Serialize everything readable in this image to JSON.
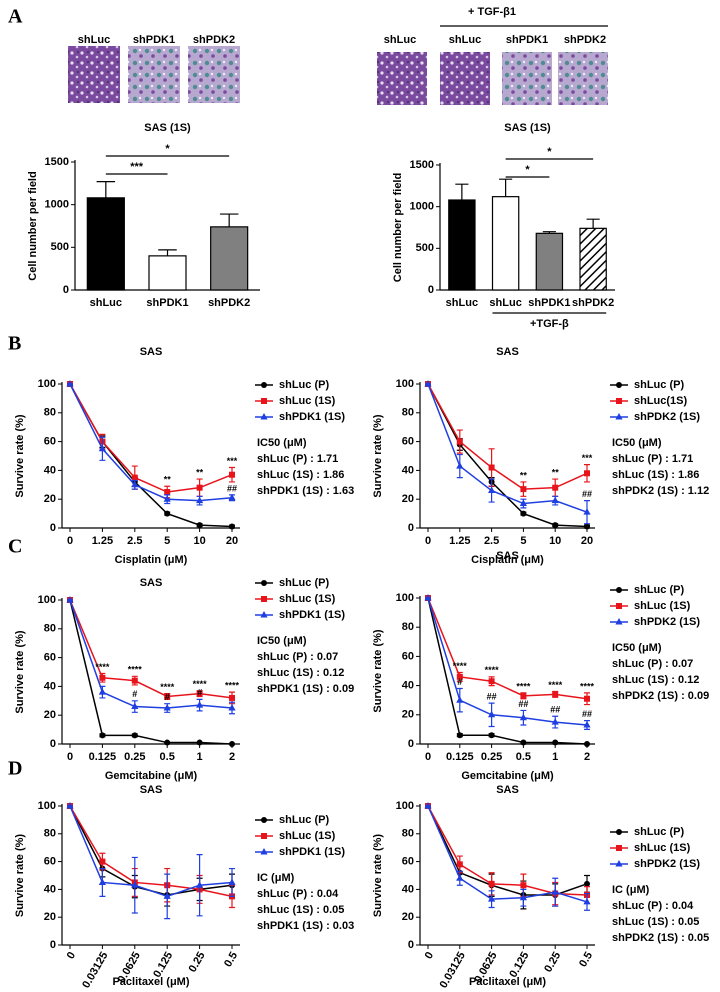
{
  "panels": [
    "A",
    "B",
    "C",
    "D"
  ],
  "images": {
    "left": [
      "shLuc",
      "shPDK1",
      "shPDK2"
    ],
    "right_header": "+ TGF-β1",
    "right": [
      "shLuc",
      "shLuc",
      "shPDK1",
      "shPDK2"
    ]
  },
  "chart_data": [
    {
      "type": "bar",
      "title": "SAS (1S)",
      "ylabel": "Cell number per field",
      "categories": [
        "shLuc",
        "shPDK1",
        "shPDK2"
      ],
      "values": [
        1080,
        400,
        740
      ],
      "errors": [
        190,
        70,
        150
      ],
      "fills": [
        "#000000",
        "#ffffff",
        "#808080"
      ],
      "ylim": [
        0,
        1500
      ],
      "yticks": [
        0,
        500,
        1000,
        1500
      ],
      "brackets": [
        {
          "text": "***",
          "from": 0,
          "to": 1
        },
        {
          "text": "*",
          "from": 0,
          "to": 2
        }
      ]
    },
    {
      "type": "bar",
      "title": "SAS (1S)",
      "ylabel": "Cell number per field",
      "categories": [
        "shLuc",
        "shLuc",
        "shPDK1",
        "shPDK2"
      ],
      "values": [
        1080,
        1120,
        680,
        740
      ],
      "errors": [
        190,
        210,
        20,
        110
      ],
      "fills": [
        "#000000",
        "#ffffff",
        "#808080",
        "hatch"
      ],
      "ylim": [
        0,
        1500
      ],
      "yticks": [
        0,
        500,
        1000,
        1500
      ],
      "brackets": [
        {
          "text": "*",
          "from": 1,
          "to": 2
        },
        {
          "text": "*",
          "from": 1,
          "to": 3
        }
      ],
      "group": {
        "label": "+TGF-β",
        "from": 1,
        "to": 3
      }
    },
    {
      "type": "line",
      "title": "SAS",
      "xlabel": "Cisplatin (μM)",
      "ylabel": "Survive rate (%)",
      "categories": [
        "0",
        "1.25",
        "2.5",
        "5",
        "10",
        "20"
      ],
      "ylim": [
        0,
        100
      ],
      "yticks": [
        0,
        20,
        40,
        60,
        80,
        100
      ],
      "series": [
        {
          "name": "shLuc (P)",
          "color": "#000000",
          "marker": "circle",
          "values": [
            100,
            60,
            32,
            10,
            2,
            1
          ],
          "errors": [
            0,
            4,
            3,
            1,
            1,
            1
          ]
        },
        {
          "name": "shLuc (1S)",
          "color": "#e8141c",
          "marker": "square",
          "values": [
            100,
            60,
            35,
            25,
            28,
            37
          ],
          "errors": [
            0,
            5,
            8,
            4,
            6,
            5
          ],
          "sig": [
            null,
            null,
            null,
            "**",
            "**",
            "***"
          ]
        },
        {
          "name": "shPDK1 (1S)",
          "color": "#1f3fe0",
          "marker": "triangle",
          "values": [
            100,
            55,
            30,
            20,
            19,
            21
          ],
          "errors": [
            0,
            8,
            3,
            3,
            3,
            2
          ],
          "sig": [
            null,
            null,
            null,
            null,
            null,
            "##"
          ]
        }
      ],
      "ic_title": "IC50 (μM)",
      "ic_lines": [
        "shLuc (P) : 1.71",
        "shLuc (1S) : 1.86",
        "shPDK1 (1S) : 1.63"
      ]
    },
    {
      "type": "line",
      "title": "SAS",
      "xlabel": "Cisplatin (μM)",
      "ylabel": "Survive rate (%)",
      "categories": [
        "0",
        "1.25",
        "2.5",
        "5",
        "10",
        "20"
      ],
      "ylim": [
        0,
        100
      ],
      "yticks": [
        0,
        20,
        40,
        60,
        80,
        100
      ],
      "series": [
        {
          "name": "shLuc (P)",
          "color": "#000000",
          "marker": "circle",
          "values": [
            100,
            58,
            32,
            10,
            2,
            1
          ],
          "errors": [
            0,
            4,
            3,
            1,
            1,
            1
          ]
        },
        {
          "name": "shLuc(1S)",
          "color": "#e8141c",
          "marker": "square",
          "values": [
            100,
            60,
            42,
            27,
            28,
            38
          ],
          "errors": [
            0,
            8,
            13,
            5,
            6,
            6
          ],
          "sig": [
            null,
            null,
            null,
            "**",
            "**",
            "***"
          ]
        },
        {
          "name": "shPDK2 (1S)",
          "color": "#1f3fe0",
          "marker": "triangle",
          "values": [
            100,
            43,
            26,
            17,
            19,
            11
          ],
          "errors": [
            0,
            8,
            8,
            3,
            3,
            8
          ],
          "sig": [
            null,
            null,
            null,
            null,
            null,
            "##"
          ]
        }
      ],
      "ic_title": "IC50 (μM)",
      "ic_lines": [
        "shLuc (P) : 1.71",
        "shLuc (1S) : 1.86",
        "shPDK2 (1S) : 1.12"
      ]
    },
    {
      "type": "line",
      "title": "SAS",
      "xlabel": "Gemcitabine (μM)",
      "ylabel": "Survive rate (%)",
      "categories": [
        "0",
        "0.125",
        "0.25",
        "0.5",
        "1",
        "2"
      ],
      "ylim": [
        0,
        100
      ],
      "yticks": [
        0,
        20,
        40,
        60,
        80,
        100
      ],
      "series": [
        {
          "name": "shLuc (P)",
          "color": "#000000",
          "marker": "circle",
          "values": [
            100,
            6,
            6,
            1,
            1,
            0
          ],
          "errors": [
            0,
            1,
            1,
            0,
            0,
            0
          ]
        },
        {
          "name": "shLuc (1S)",
          "color": "#e8141c",
          "marker": "square",
          "values": [
            100,
            46,
            44,
            33,
            35,
            32
          ],
          "errors": [
            0,
            3,
            3,
            2,
            2,
            4
          ],
          "sig": [
            null,
            "****",
            "****",
            "****",
            "****",
            "****"
          ]
        },
        {
          "name": "shPDK1 (1S)",
          "color": "#1f3fe0",
          "marker": "triangle",
          "values": [
            100,
            36,
            26,
            25,
            27,
            25
          ],
          "errors": [
            0,
            4,
            4,
            3,
            4,
            4
          ],
          "sig": [
            null,
            null,
            "#",
            "#",
            "#",
            null
          ]
        }
      ],
      "ic_title": "IC50 (μM)",
      "ic_lines": [
        "shLuc (P) : 0.07",
        "shLuc (1S) : 0.12",
        "shPDK1 (1S) : 0.09"
      ]
    },
    {
      "type": "line",
      "title": "SAS",
      "xlabel": "Gemcitabine (μM)",
      "ylabel": "Survive rate (%)",
      "categories": [
        "0",
        "0.125",
        "0.25",
        "0.5",
        "1",
        "2"
      ],
      "ylim": [
        0,
        100
      ],
      "yticks": [
        0,
        20,
        40,
        60,
        80,
        100
      ],
      "series": [
        {
          "name": "shLuc (P)",
          "color": "#000000",
          "marker": "circle",
          "values": [
            100,
            6,
            6,
            1,
            1,
            0
          ],
          "errors": [
            0,
            1,
            1,
            0,
            0,
            0
          ]
        },
        {
          "name": "shLuc (1S)",
          "color": "#e8141c",
          "marker": "square",
          "values": [
            100,
            46,
            43,
            33,
            34,
            31
          ],
          "errors": [
            0,
            3,
            3,
            2,
            2,
            4
          ],
          "sig": [
            null,
            "****",
            "****",
            "****",
            "****",
            "****"
          ]
        },
        {
          "name": "shPDK2 (1S)",
          "color": "#1f3fe0",
          "marker": "triangle",
          "values": [
            100,
            30,
            20,
            18,
            15,
            13
          ],
          "errors": [
            0,
            8,
            8,
            5,
            4,
            3
          ],
          "sig": [
            null,
            "#",
            "##",
            "##",
            "##",
            "##"
          ]
        }
      ],
      "ic_title": "IC50 (μM)",
      "ic_lines": [
        "shLuc (P) : 0.07",
        "shLuc (1S) : 0.12",
        "shPDK2 (1S) : 0.09"
      ]
    },
    {
      "type": "line",
      "title": "SAS",
      "xlabel": "Paclitaxel (μM)",
      "ylabel": "Survive rate (%)",
      "categories": [
        "0",
        "0.03125",
        "0.0625",
        "0.125",
        "0.25",
        "0.5"
      ],
      "ylim": [
        0,
        100
      ],
      "yticks": [
        0,
        20,
        40,
        60,
        80,
        100
      ],
      "series": [
        {
          "name": "shLuc (P)",
          "color": "#000000",
          "marker": "circle",
          "values": [
            100,
            55,
            42,
            36,
            40,
            43
          ],
          "errors": [
            0,
            6,
            8,
            8,
            8,
            8
          ]
        },
        {
          "name": "shLuc (1S)",
          "color": "#e8141c",
          "marker": "square",
          "values": [
            100,
            60,
            45,
            43,
            40,
            35
          ],
          "errors": [
            0,
            6,
            10,
            12,
            10,
            8
          ]
        },
        {
          "name": "shPDK1 (1S)",
          "color": "#1f3fe0",
          "marker": "triangle",
          "values": [
            100,
            45,
            43,
            35,
            43,
            45
          ],
          "errors": [
            0,
            10,
            20,
            16,
            22,
            10
          ]
        }
      ],
      "ic_title": "IC (μM)",
      "ic_lines": [
        "shLuc (P) : 0.04",
        "shLuc (1S) : 0.05",
        "shPDK1 (1S) : 0.03"
      ]
    },
    {
      "type": "line",
      "title": "SAS",
      "xlabel": "Paclitaxel (μM)",
      "ylabel": "Survive rate (%)",
      "categories": [
        "0",
        "0.03125",
        "0.0625",
        "0.125",
        "0.25",
        "0.5"
      ],
      "ylim": [
        0,
        100
      ],
      "yticks": [
        0,
        20,
        40,
        60,
        80,
        100
      ],
      "series": [
        {
          "name": "shLuc (P)",
          "color": "#000000",
          "marker": "circle",
          "values": [
            100,
            52,
            43,
            36,
            36,
            44
          ],
          "errors": [
            0,
            5,
            8,
            10,
            8,
            6
          ]
        },
        {
          "name": "shLuc (1S)",
          "color": "#e8141c",
          "marker": "square",
          "values": [
            100,
            58,
            44,
            43,
            37,
            36
          ],
          "errors": [
            0,
            6,
            8,
            8,
            8,
            6
          ]
        },
        {
          "name": "shPDK2 (1S)",
          "color": "#1f3fe0",
          "marker": "triangle",
          "values": [
            100,
            48,
            33,
            34,
            38,
            31
          ],
          "errors": [
            0,
            5,
            6,
            6,
            10,
            6
          ]
        }
      ],
      "ic_title": "IC (μM)",
      "ic_lines": [
        "shLuc (P) : 0.04",
        "shLuc (1S) : 0.05",
        "shPDK2 (1S) : 0.05"
      ]
    }
  ]
}
